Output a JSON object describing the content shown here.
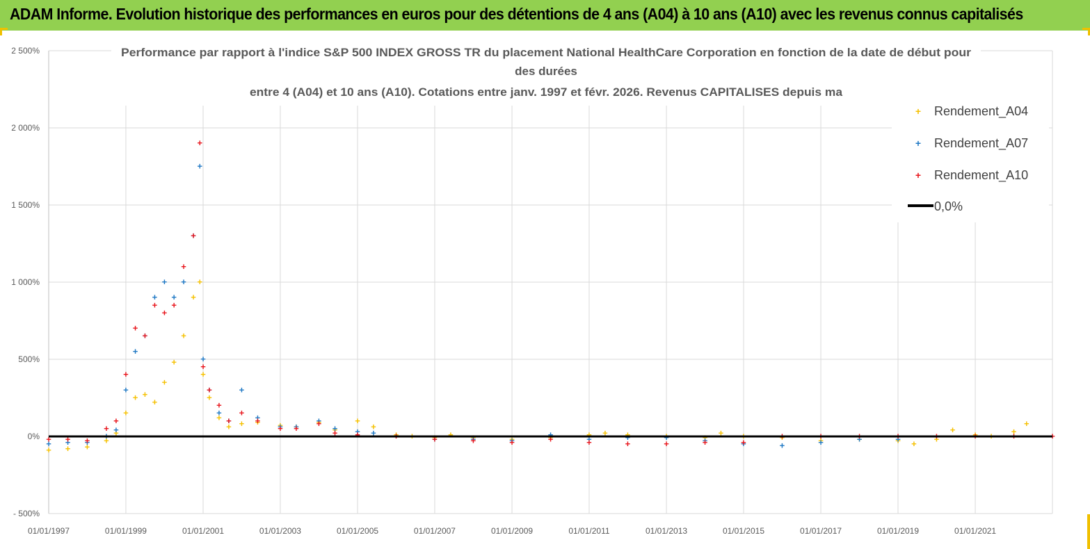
{
  "header": {
    "title": "ADAM Informe. Evolution historique des performances en euros pour des détentions de 4 ans (A04) à 10 ans (A10) avec les revenus connus capitalisés"
  },
  "colors": {
    "header_bg": "#92d050",
    "a04": "#f5c000",
    "a07": "#1f78c4",
    "a10": "#e8141b",
    "zero": "#000000",
    "grid": "#d9d9d9"
  },
  "chart_data": {
    "type": "scatter",
    "title_lines": [
      "Performance par rapport à l'indice S&P 500 INDEX GROSS TR  du placement National HealthCare Corporation en fonction de la date de début pour",
      "des durées",
      "entre 4 (A04) et 10 ans (A10). Cotations entre janv. 1997 et févr. 2026. Revenus CAPITALISES depuis ma"
    ],
    "ylim": [
      -500,
      2500
    ],
    "yticks": [
      -500,
      0,
      500,
      1000,
      1500,
      2000,
      2500
    ],
    "ytick_labels": [
      "- 500%",
      "0%",
      "500%",
      "1 000%",
      "1 500%",
      "2 000%",
      "2 500%"
    ],
    "xlim": [
      "1997-01-01",
      "2023-01-01"
    ],
    "xtick_labels": [
      "01/01/1997",
      "01/01/1999",
      "01/01/2001",
      "01/01/2003",
      "01/01/2005",
      "01/01/2007",
      "01/01/2009",
      "01/01/2011",
      "01/01/2013",
      "01/01/2015",
      "01/01/2017",
      "01/01/2019",
      "01/01/2021"
    ],
    "legend_position": "top-right",
    "legend": [
      "Rendement_A04",
      "Rendement_A07",
      "Rendement_A10",
      "0,0%"
    ],
    "series": [
      {
        "name": "Rendement_A04",
        "points": [
          [
            "1997-01-01",
            -90
          ],
          [
            "1997-07-01",
            -80
          ],
          [
            "1998-01-01",
            -70
          ],
          [
            "1998-07-01",
            -30
          ],
          [
            "1998-10-01",
            20
          ],
          [
            "1999-01-01",
            150
          ],
          [
            "1999-04-01",
            250
          ],
          [
            "1999-07-01",
            270
          ],
          [
            "1999-10-01",
            220
          ],
          [
            "2000-01-01",
            350
          ],
          [
            "2000-04-01",
            480
          ],
          [
            "2000-07-01",
            650
          ],
          [
            "2000-10-01",
            900
          ],
          [
            "2000-12-01",
            1000
          ],
          [
            "2001-01-01",
            400
          ],
          [
            "2001-03-01",
            250
          ],
          [
            "2001-06-01",
            120
          ],
          [
            "2001-09-01",
            60
          ],
          [
            "2002-01-01",
            80
          ],
          [
            "2002-06-01",
            90
          ],
          [
            "2003-01-01",
            70
          ],
          [
            "2003-06-01",
            60
          ],
          [
            "2004-01-01",
            90
          ],
          [
            "2004-06-01",
            40
          ],
          [
            "2005-01-01",
            100
          ],
          [
            "2005-06-01",
            60
          ],
          [
            "2006-01-01",
            10
          ],
          [
            "2006-06-01",
            0
          ],
          [
            "2007-01-01",
            -10
          ],
          [
            "2007-06-01",
            10
          ],
          [
            "2008-01-01",
            -10
          ],
          [
            "2009-01-01",
            -20
          ],
          [
            "2010-01-01",
            -10
          ],
          [
            "2011-01-01",
            10
          ],
          [
            "2011-06-01",
            20
          ],
          [
            "2012-01-01",
            10
          ],
          [
            "2013-01-01",
            0
          ],
          [
            "2014-01-01",
            -10
          ],
          [
            "2014-06-01",
            20
          ],
          [
            "2015-01-01",
            0
          ],
          [
            "2016-01-01",
            -10
          ],
          [
            "2017-01-01",
            -30
          ],
          [
            "2018-01-01",
            -20
          ],
          [
            "2019-01-01",
            -30
          ],
          [
            "2019-06-01",
            -50
          ],
          [
            "2020-01-01",
            -20
          ],
          [
            "2020-06-01",
            40
          ],
          [
            "2021-01-01",
            10
          ],
          [
            "2021-06-01",
            0
          ],
          [
            "2022-01-01",
            30
          ],
          [
            "2022-05-01",
            80
          ]
        ]
      },
      {
        "name": "Rendement_A07",
        "points": [
          [
            "1997-01-01",
            -50
          ],
          [
            "1997-07-01",
            -40
          ],
          [
            "1998-01-01",
            -40
          ],
          [
            "1998-07-01",
            0
          ],
          [
            "1998-10-01",
            40
          ],
          [
            "1999-01-01",
            300
          ],
          [
            "1999-04-01",
            550
          ],
          [
            "1999-07-01",
            650
          ],
          [
            "1999-10-01",
            900
          ],
          [
            "2000-01-01",
            1000
          ],
          [
            "2000-04-01",
            900
          ],
          [
            "2000-07-01",
            1000
          ],
          [
            "2000-10-01",
            1300
          ],
          [
            "2000-12-01",
            1750
          ],
          [
            "2001-01-01",
            500
          ],
          [
            "2001-03-01",
            300
          ],
          [
            "2001-06-01",
            150
          ],
          [
            "2001-09-01",
            100
          ],
          [
            "2002-01-01",
            300
          ],
          [
            "2002-06-01",
            120
          ],
          [
            "2003-01-01",
            60
          ],
          [
            "2003-06-01",
            60
          ],
          [
            "2004-01-01",
            100
          ],
          [
            "2004-06-01",
            50
          ],
          [
            "2005-01-01",
            30
          ],
          [
            "2005-06-01",
            20
          ],
          [
            "2006-01-01",
            0
          ],
          [
            "2007-01-01",
            -20
          ],
          [
            "2008-01-01",
            -20
          ],
          [
            "2009-01-01",
            -30
          ],
          [
            "2010-01-01",
            10
          ],
          [
            "2011-01-01",
            -20
          ],
          [
            "2012-01-01",
            -10
          ],
          [
            "2013-01-01",
            -10
          ],
          [
            "2014-01-01",
            -30
          ],
          [
            "2015-01-01",
            -50
          ],
          [
            "2016-01-01",
            -60
          ],
          [
            "2017-01-01",
            -40
          ],
          [
            "2018-01-01",
            -20
          ],
          [
            "2019-01-01",
            -20
          ]
        ]
      },
      {
        "name": "Rendement_A10",
        "points": [
          [
            "1997-01-01",
            -20
          ],
          [
            "1997-07-01",
            -20
          ],
          [
            "1998-01-01",
            -30
          ],
          [
            "1998-07-01",
            50
          ],
          [
            "1998-10-01",
            100
          ],
          [
            "1999-01-01",
            400
          ],
          [
            "1999-04-01",
            700
          ],
          [
            "1999-07-01",
            650
          ],
          [
            "1999-10-01",
            850
          ],
          [
            "2000-01-01",
            800
          ],
          [
            "2000-04-01",
            850
          ],
          [
            "2000-07-01",
            1100
          ],
          [
            "2000-10-01",
            1300
          ],
          [
            "2000-12-01",
            1900
          ],
          [
            "2001-01-01",
            450
          ],
          [
            "2001-03-01",
            300
          ],
          [
            "2001-06-01",
            200
          ],
          [
            "2001-09-01",
            100
          ],
          [
            "2002-01-01",
            150
          ],
          [
            "2002-06-01",
            100
          ],
          [
            "2003-01-01",
            50
          ],
          [
            "2003-06-01",
            50
          ],
          [
            "2004-01-01",
            80
          ],
          [
            "2004-06-01",
            20
          ],
          [
            "2005-01-01",
            10
          ],
          [
            "2006-01-01",
            0
          ],
          [
            "2007-01-01",
            -20
          ],
          [
            "2008-01-01",
            -30
          ],
          [
            "2009-01-01",
            -40
          ],
          [
            "2010-01-01",
            -20
          ],
          [
            "2011-01-01",
            -40
          ],
          [
            "2012-01-01",
            -50
          ],
          [
            "2013-01-01",
            -50
          ],
          [
            "2014-01-01",
            -40
          ],
          [
            "2015-01-01",
            -40
          ],
          [
            "2016-01-01",
            0
          ],
          [
            "2017-01-01",
            0
          ],
          [
            "2018-01-01",
            0
          ],
          [
            "2019-01-01",
            0
          ],
          [
            "2020-01-01",
            0
          ],
          [
            "2021-01-01",
            0
          ],
          [
            "2022-01-01",
            0
          ],
          [
            "2023-01-01",
            0
          ]
        ]
      }
    ],
    "zero_line": {
      "name": "0,0%",
      "value": 0
    }
  }
}
